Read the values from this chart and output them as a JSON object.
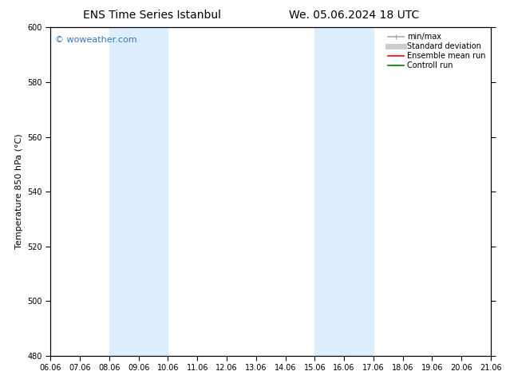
{
  "title_left": "ENS Time Series Istanbul",
  "title_right": "We. 05.06.2024 18 UTC",
  "ylabel": "Temperature 850 hPa (°C)",
  "ylim": [
    480,
    600
  ],
  "yticks": [
    480,
    500,
    520,
    540,
    560,
    580,
    600
  ],
  "xtick_labels": [
    "06.06",
    "07.06",
    "08.06",
    "09.06",
    "10.06",
    "11.06",
    "12.06",
    "13.06",
    "14.06",
    "15.06",
    "16.06",
    "17.06",
    "18.06",
    "19.06",
    "20.06",
    "21.06"
  ],
  "shaded_bands": [
    {
      "xstart": 2,
      "xend": 4,
      "color": "#ddeeff"
    },
    {
      "xstart": 9,
      "xend": 11,
      "color": "#ddeeff"
    }
  ],
  "watermark": "© woweather.com",
  "watermark_color": "#3377bb",
  "legend_items": [
    {
      "label": "min/max",
      "color": "#aaaaaa",
      "lw": 1.2
    },
    {
      "label": "Standard deviation",
      "color": "#cccccc",
      "lw": 5
    },
    {
      "label": "Ensemble mean run",
      "color": "red",
      "lw": 1.2
    },
    {
      "label": "Controll run",
      "color": "green",
      "lw": 1.2
    }
  ],
  "background_color": "#ffffff",
  "plot_bg_color": "#ffffff",
  "border_color": "#000000",
  "title_fontsize": 10,
  "axis_fontsize": 8,
  "tick_fontsize": 7,
  "legend_fontsize": 7
}
